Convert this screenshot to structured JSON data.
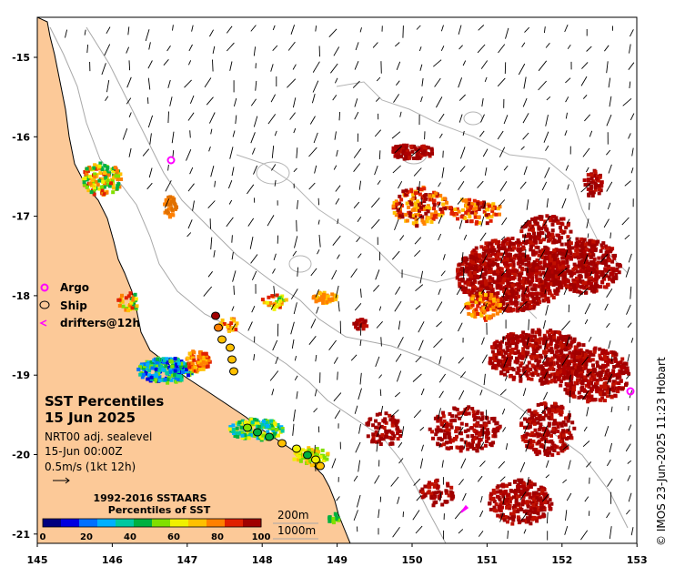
{
  "map": {
    "lon_ticks": [
      "145",
      "146",
      "147",
      "148",
      "149",
      "150",
      "151",
      "152",
      "153"
    ],
    "lat_ticks": [
      "-15",
      "-16",
      "-17",
      "-18",
      "-19",
      "-20",
      "-21"
    ],
    "land_color": "#fcc998",
    "ocean_color": "#ffffff"
  },
  "legend": {
    "argo_label": "Argo",
    "ship_label": "Ship",
    "drifters_label": "drifters@12h",
    "argo_color": "#ff00ff",
    "drifter_color": "#ff00ff"
  },
  "info": {
    "title_line1": "SST Percentiles",
    "title_line2": "15 Jun 2025",
    "product": "NRT00 adj. sealevel",
    "time": "15-Jun 00:00Z",
    "scale": "0.5m/s (1kt 12h)"
  },
  "colorbar": {
    "title_line1": "1992-2016 SSTAARS",
    "title_line2": "Percentiles of SST",
    "tick_labels": [
      "0",
      "20",
      "40",
      "60",
      "80",
      "100"
    ],
    "colors": [
      "#00007f",
      "#0000e0",
      "#0070ff",
      "#00b0ff",
      "#00c8a0",
      "#00b040",
      "#80e000",
      "#f0f000",
      "#ffc000",
      "#ff8000",
      "#e02000",
      "#a00000"
    ]
  },
  "contours": {
    "label_200": "200m",
    "label_1000": "1000m",
    "color": "#a8a8a8"
  },
  "credit": "© IMOS 23-Jun-2025 11:23 Hobart"
}
